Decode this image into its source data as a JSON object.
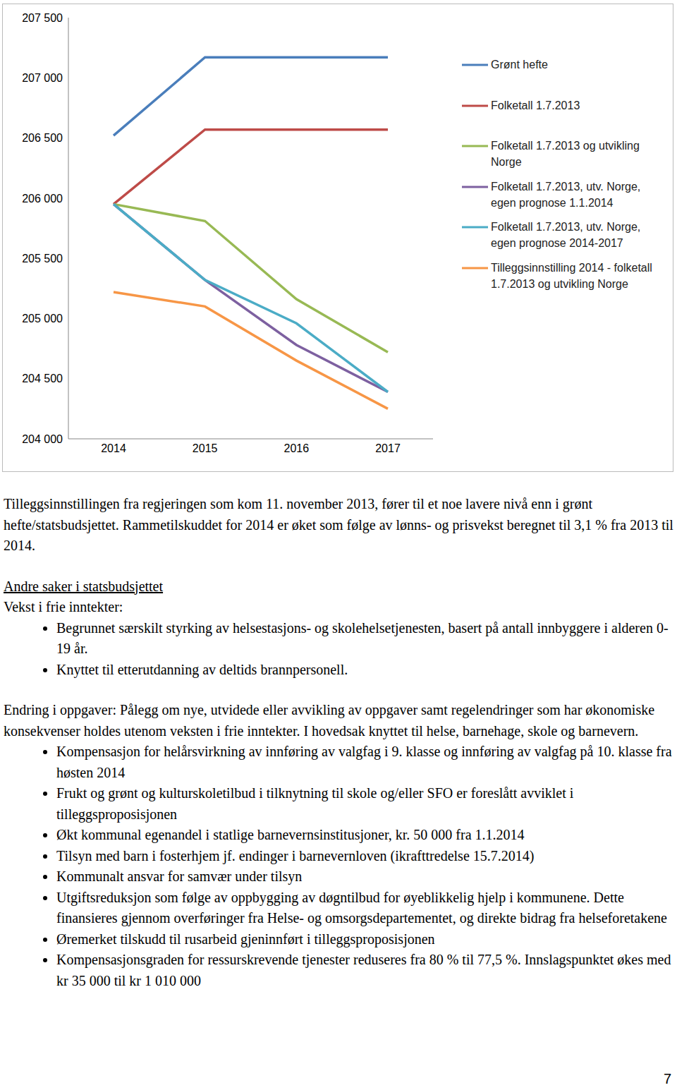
{
  "chart_data": {
    "type": "line",
    "categories": [
      "2014",
      "2015",
      "2016",
      "2017"
    ],
    "ylim": [
      204000,
      207500
    ],
    "yticks": [
      {
        "value": 204000,
        "label": "204 000"
      },
      {
        "value": 204500,
        "label": "204 500"
      },
      {
        "value": 205000,
        "label": "205 000"
      },
      {
        "value": 205500,
        "label": "205 500"
      },
      {
        "value": 206000,
        "label": "206 000"
      },
      {
        "value": 206500,
        "label": "206 500"
      },
      {
        "value": 207000,
        "label": "207 000"
      },
      {
        "value": 207500,
        "label": "207 500"
      }
    ],
    "grid": false,
    "legend": "right",
    "series": [
      {
        "name": "Grønt hefte",
        "color": "#4a7ebb",
        "values": [
          206520,
          207170,
          207170,
          207170
        ]
      },
      {
        "name": "Folketall 1.7.2013",
        "color": "#be4b48",
        "values": [
          205950,
          206570,
          206570,
          206570
        ]
      },
      {
        "name": "Folketall 1.7.2013 og utvikling Norge",
        "color": "#98b954",
        "values": [
          205950,
          205810,
          205160,
          204720
        ]
      },
      {
        "name": "Folketall 1.7.2013, utv. Norge, egen prognose 1.1.2014",
        "color": "#7d60a0",
        "values": [
          205950,
          205320,
          204780,
          204390
        ]
      },
      {
        "name": "Folketall 1.7.2013, utv. Norge, egen prognose 2014-2017",
        "color": "#4bacc6",
        "values": [
          205950,
          205320,
          204960,
          204390
        ]
      },
      {
        "name": "Tilleggsinnstilling 2014  - folketall 1.7.2013 og utvikling Norge",
        "color": "#f79646",
        "values": [
          205220,
          205100,
          204650,
          204250
        ]
      }
    ]
  },
  "document": {
    "intro": "Tilleggsinnstillingen fra regjeringen som kom 11. november 2013, fører til et noe lavere nivå enn i grønt hefte/statsbudsjettet. Rammetilskuddet for 2014 er øket som følge av lønns- og prisvekst beregnet til 3,1 % fra 2013 til 2014.",
    "heading": "Andre saker i statsbudsjettet",
    "subheading": "Vekst i frie inntekter:",
    "bullets_1": [
      "Begrunnet særskilt styrking av helsestasjons- og skolehelsetjenesten, basert på antall innbyggere i alderen 0-19 år.",
      "Knyttet til etterutdanning av deltids brannpersonell."
    ],
    "paragraph": "Endring i oppgaver: Pålegg om nye, utvidede eller avvikling av oppgaver samt regelendringer som har økonomiske konsekvenser holdes utenom veksten i frie inntekter. I hovedsak knyttet til helse, barnehage, skole og barnevern.",
    "bullets_2": [
      "Kompensasjon for helårsvirkning av innføring av valgfag i 9. klasse og innføring av valgfag på 10. klasse fra høsten 2014",
      "Frukt og grønt og kulturskoletilbud i tilknytning til skole og/eller SFO er foreslått avviklet i tilleggsproposisjonen",
      "Økt kommunal egenandel i statlige barnevernsinstitusjoner, kr. 50 000 fra 1.1.2014",
      "Tilsyn med barn i fosterhjem jf. endinger i barnevernloven (ikrafttredelse 15.7.2014)",
      "Kommunalt ansvar for samvær under tilsyn",
      "Utgiftsreduksjon som følge av oppbygging av døgntilbud for øyeblikkelig hjelp i kommunene. Dette finansieres gjennom overføringer fra Helse- og omsorgsdepartementet, og direkte bidrag fra helseforetakene",
      "Øremerket tilskudd til rusarbeid gjeninnført i tilleggsproposisjonen",
      "Kompensasjonsgraden for ressurskrevende tjenester reduseres fra 80 % til 77,5 %. Innslagspunktet økes med kr 35 000 til kr 1 010 000"
    ],
    "page_number": "7"
  }
}
